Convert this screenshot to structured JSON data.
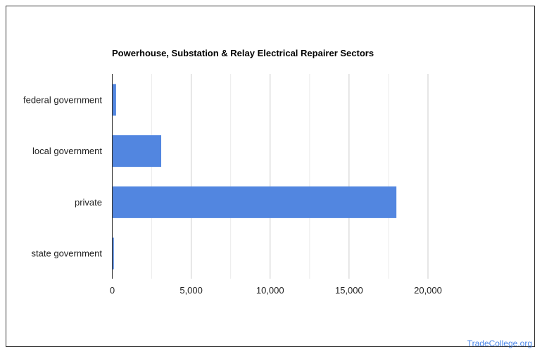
{
  "chart_data": {
    "type": "bar",
    "orientation": "horizontal",
    "title": "Powerhouse, Substation & Relay Electrical Repairer Sectors",
    "categories": [
      "federal government",
      "local government",
      "private",
      "state government"
    ],
    "values": [
      240,
      3100,
      18000,
      100
    ],
    "xlim": [
      0,
      20000
    ],
    "xticks": [
      0,
      5000,
      10000,
      15000,
      20000
    ],
    "xtick_labels": [
      "0",
      "5,000",
      "10,000",
      "15,000",
      "20,000"
    ],
    "minor_gridlines_step": 2500,
    "grid": true,
    "bar_color": "#5286e0"
  },
  "credit": "TradeCollege.org"
}
